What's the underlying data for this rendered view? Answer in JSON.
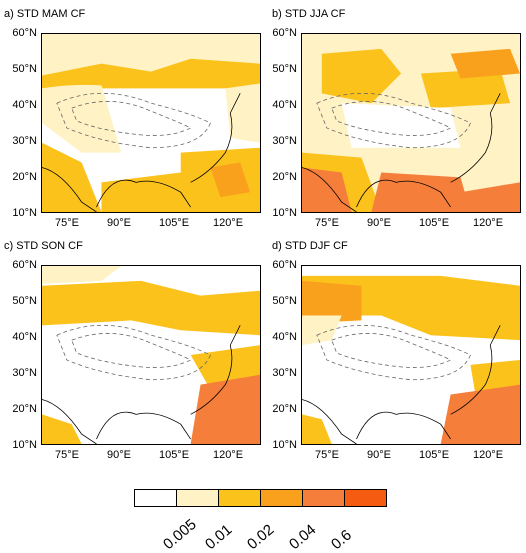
{
  "panels": [
    {
      "title": "a) STD MAM CF"
    },
    {
      "title": "b) STD JJA CF"
    },
    {
      "title": "c) STD SON CF"
    },
    {
      "title": "d) STD DJF CF"
    }
  ],
  "axes": {
    "lat_labels": [
      "60°N",
      "50°N",
      "40°N",
      "30°N",
      "20°N",
      "10°N"
    ],
    "lon_labels": [
      "75°E",
      "90°E",
      "105°E",
      "120°E"
    ]
  },
  "colorbar": {
    "colors": [
      "#ffffff",
      "#fff2c4",
      "#fcc21c",
      "#f9a11d",
      "#f67e3b",
      "#f65b12"
    ],
    "labels": [
      "0.005",
      "0.01",
      "0.02",
      "0.04",
      "0.6"
    ]
  }
}
